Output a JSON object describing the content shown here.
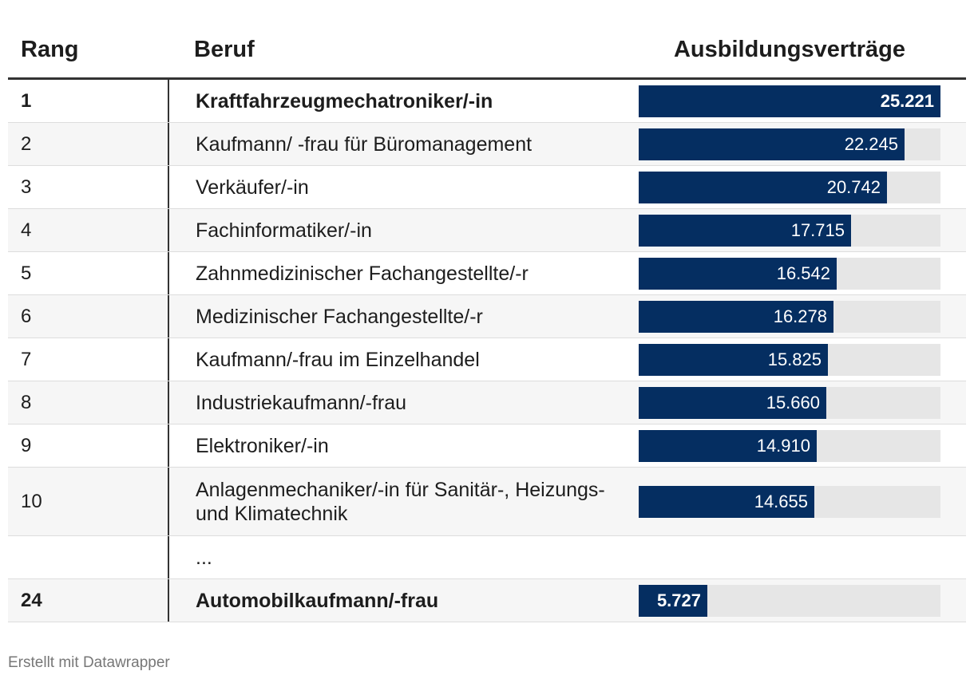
{
  "table": {
    "headers": {
      "rang": "Rang",
      "beruf": "Beruf",
      "value": "Ausbildungsverträge"
    },
    "rows": [
      {
        "rang": "1",
        "beruf": "Kraftfahrzeugmechatroniker/-in",
        "value": 25221,
        "label": "25.221",
        "bold": true
      },
      {
        "rang": "2",
        "beruf": "Kaufmann/ -frau für Büromanagement",
        "value": 22245,
        "label": "22.245"
      },
      {
        "rang": "3",
        "beruf": "Verkäufer/-in",
        "value": 20742,
        "label": "20.742"
      },
      {
        "rang": "4",
        "beruf": "Fachinformatiker/-in",
        "value": 17715,
        "label": "17.715"
      },
      {
        "rang": "5",
        "beruf": "Zahnmedizinischer Fachangestellte/-r",
        "value": 16542,
        "label": "16.542"
      },
      {
        "rang": "6",
        "beruf": "Medizinischer Fachangestellte/-r",
        "value": 16278,
        "label": "16.278"
      },
      {
        "rang": "7",
        "beruf": "Kaufmann/-frau im Einzelhandel",
        "value": 15825,
        "label": "15.825"
      },
      {
        "rang": "8",
        "beruf": "Industriekaufmann/-frau",
        "value": 15660,
        "label": "15.660"
      },
      {
        "rang": "9",
        "beruf": "Elektroniker/-in",
        "value": 14910,
        "label": "14.910"
      },
      {
        "rang": "10",
        "beruf": "Anlagenmechaniker/-in für Sanitär-, Heizungs- und Klimatechnik",
        "value": 14655,
        "label": "14.655"
      },
      {
        "rang": "",
        "beruf": "...",
        "value": null,
        "label": ""
      },
      {
        "rang": "24",
        "beruf": "Automobilkaufmann/-frau",
        "value": 5727,
        "label": "5.727",
        "bold": true
      }
    ]
  },
  "chart_data": {
    "type": "table",
    "categories": [
      "Kraftfahrzeugmechatroniker/-in",
      "Kaufmann/ -frau für Büromanagement",
      "Verkäufer/-in",
      "Fachinformatiker/-in",
      "Zahnmedizinischer Fachangestellte/-r",
      "Medizinischer Fachangestellte/-r",
      "Kaufmann/-frau im Einzelhandel",
      "Industriekaufmann/-frau",
      "Elektroniker/-in",
      "Anlagenmechaniker/-in für Sanitär-, Heizungs- und Klimatechnik",
      "Automobilkaufmann/-frau"
    ],
    "values": [
      25221,
      22245,
      20742,
      17715,
      16542,
      16278,
      15825,
      15660,
      14910,
      14655,
      5727
    ],
    "max": 25221,
    "bar_color": "#052e61",
    "track_color": "#e6e6e6"
  },
  "footer": {
    "credit": "Erstellt mit Datawrapper"
  }
}
